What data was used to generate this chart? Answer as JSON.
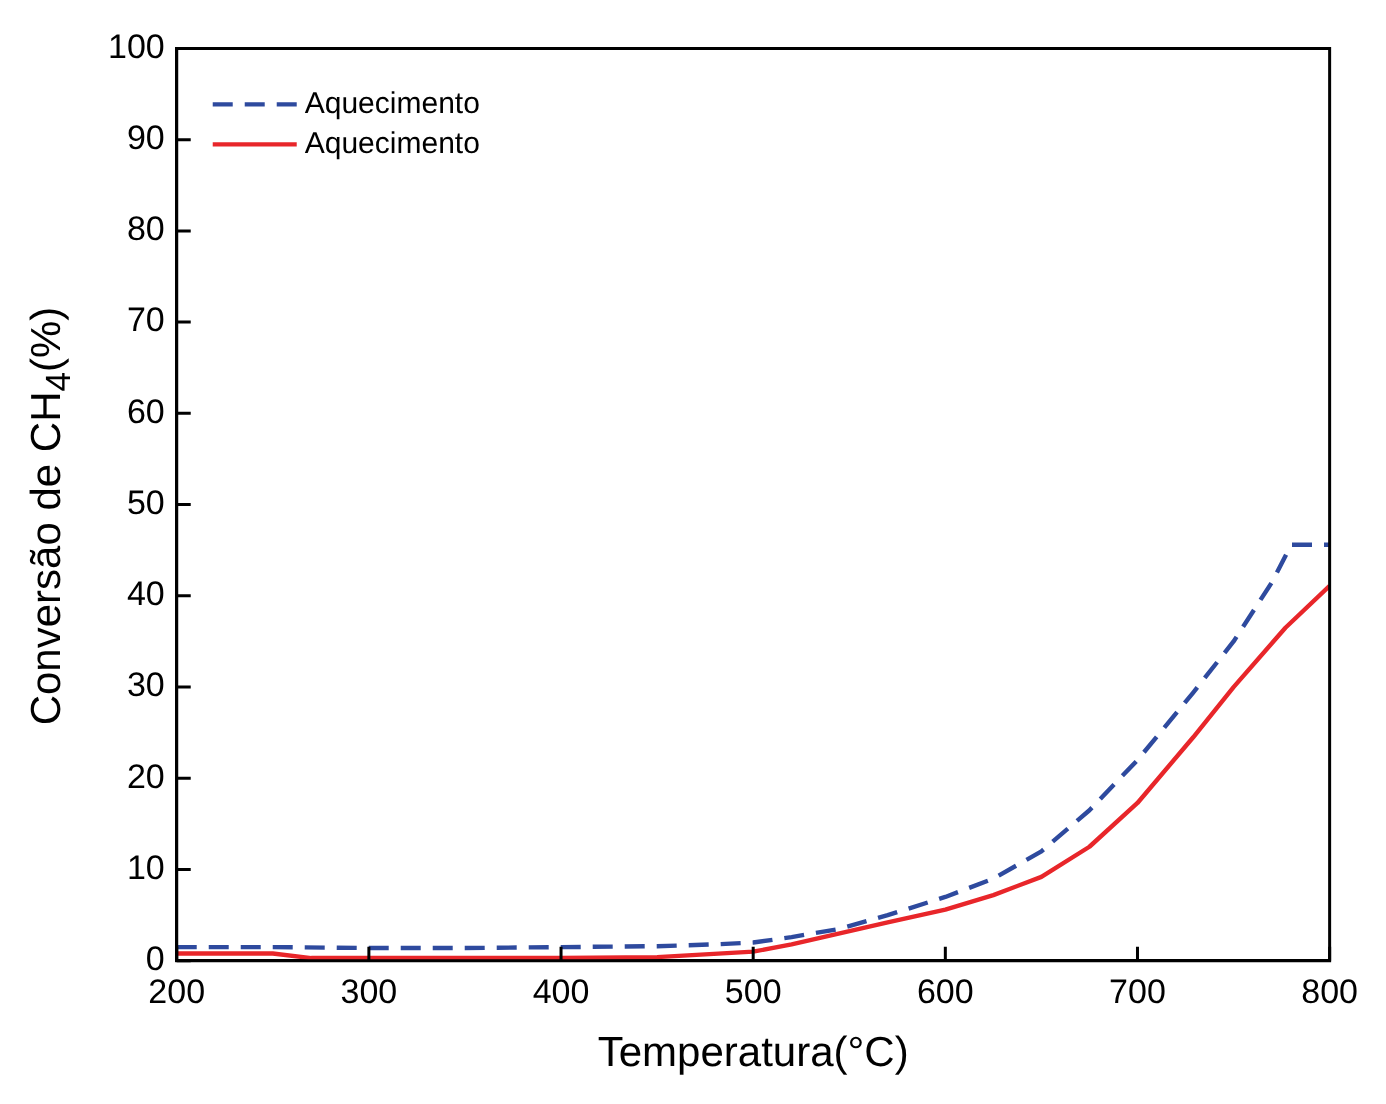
{
  "chart_data": {
    "type": "line",
    "xlabel": "Temperatura(°C)",
    "ylabel": "Conversão de CH$_{4}$(%)",
    "xlim": [
      200,
      800
    ],
    "xticks": [
      200,
      300,
      400,
      500,
      600,
      700,
      800
    ],
    "ylim": [
      0,
      100
    ],
    "yticks": [
      0,
      10,
      20,
      30,
      40,
      50,
      60,
      70,
      80,
      90,
      100
    ],
    "grid": false,
    "legend": "top left",
    "series": [
      {
        "name": "Aquecimento",
        "color": "#2e4a9e",
        "line_style": "dashed",
        "x": [
          200,
          250,
          300,
          350,
          400,
          450,
          480,
          500,
          520,
          545,
          570,
          600,
          625,
          650,
          675,
          700,
          729,
          750,
          770,
          780,
          800
        ],
        "values": [
          1.5,
          1.5,
          1.4,
          1.4,
          1.5,
          1.6,
          1.8,
          2,
          2.6,
          3.5,
          5,
          7,
          9,
          12,
          16.5,
          22,
          29.4,
          35,
          41.5,
          45.6,
          45.6
        ]
      },
      {
        "name": "Aquecimento",
        "color": "#e8262a",
        "line_style": "solid",
        "x": [
          200,
          250,
          270,
          300,
          350,
          400,
          450,
          500,
          520,
          545,
          570,
          600,
          625,
          650,
          675,
          700,
          729,
          750,
          777,
          800
        ],
        "values": [
          0.8,
          0.8,
          0.3,
          0.3,
          0.3,
          0.3,
          0.4,
          1,
          1.8,
          3,
          4.2,
          5.6,
          7.2,
          9.2,
          12.5,
          17.3,
          24.5,
          30,
          36.5,
          41.1
        ]
      }
    ]
  }
}
